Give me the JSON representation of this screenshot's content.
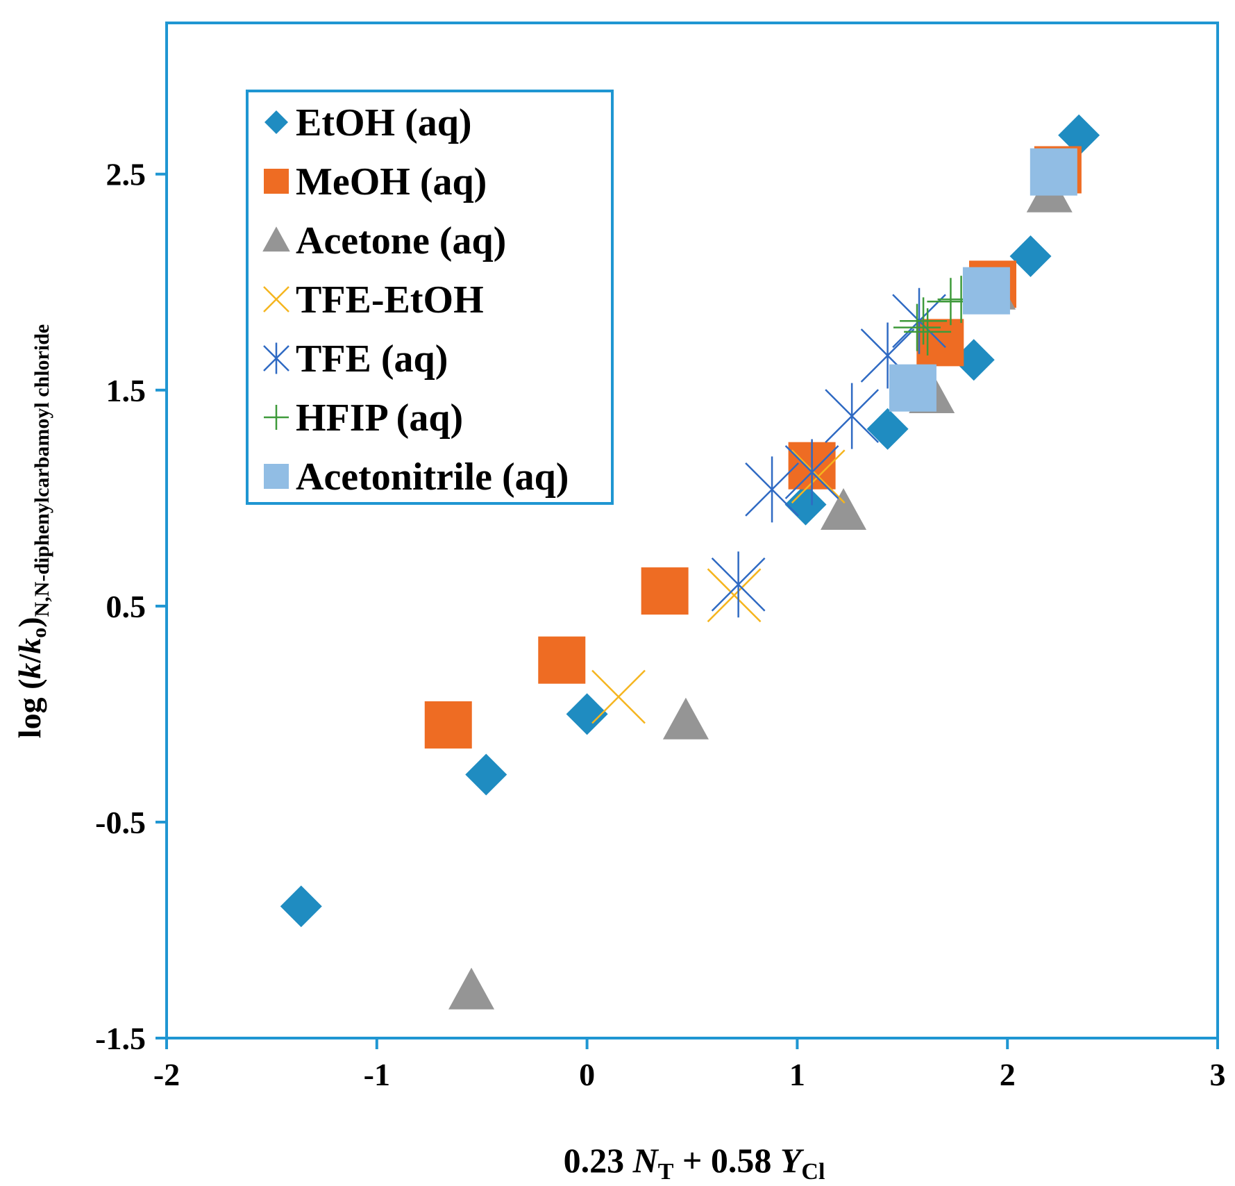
{
  "chart_data": {
    "type": "scatter",
    "title": "",
    "xlabel": {
      "main": "0.23 ",
      "n": "N",
      "nsub": "T",
      "plus": " + 0.58 ",
      "y": "Y",
      "ysub": "Cl"
    },
    "ylabel": {
      "prefix": "log (",
      "k": "k",
      "slash": "/",
      "k0": "k",
      "k0sub": "o",
      "close": ")",
      "subscript": "N,N-diphenylcarbamoyl chloride"
    },
    "xlim": [
      -2,
      3
    ],
    "ylim": [
      -1.5,
      3.2
    ],
    "xticks": [
      -2,
      -1,
      0,
      1,
      2,
      3
    ],
    "xtick_labels": [
      "-2",
      "-1",
      "0",
      "1",
      "2",
      "3"
    ],
    "yticks": [
      -1.5,
      -0.5,
      0.5,
      1.5,
      2.5
    ],
    "ytick_labels": [
      "-1.5",
      "-0.5",
      "0.5",
      "1.5",
      "2.5"
    ],
    "legend_position": "top-left",
    "series": [
      {
        "name": "EtOH (aq)",
        "marker": "diamond",
        "color": "#1f8cc1",
        "points": [
          [
            -1.36,
            -0.89
          ],
          [
            -0.48,
            -0.28
          ],
          [
            0.0,
            0.0
          ],
          [
            1.04,
            0.97
          ],
          [
            1.43,
            1.32
          ],
          [
            1.84,
            1.64
          ],
          [
            2.11,
            2.12
          ],
          [
            2.25,
            2.52
          ],
          [
            2.34,
            2.68
          ]
        ]
      },
      {
        "name": "MeOH (aq)",
        "marker": "square",
        "color": "#ee6c23",
        "points": [
          [
            -0.66,
            -0.05
          ],
          [
            -0.12,
            0.25
          ],
          [
            0.37,
            0.57
          ],
          [
            1.07,
            1.15
          ],
          [
            1.68,
            1.72
          ],
          [
            1.93,
            1.99
          ],
          [
            2.24,
            2.52
          ]
        ]
      },
      {
        "name": "Acetone (aq)",
        "marker": "triangle",
        "color": "#959595",
        "points": [
          [
            -0.55,
            -1.28
          ],
          [
            0.47,
            -0.03
          ],
          [
            1.22,
            0.94
          ],
          [
            1.64,
            1.48
          ],
          [
            1.93,
            1.96
          ],
          [
            2.2,
            2.41
          ]
        ]
      },
      {
        "name": "TFE-EtOH",
        "marker": "x",
        "color": "#f5b51f",
        "points": [
          [
            0.15,
            0.08
          ],
          [
            0.7,
            0.55
          ],
          [
            1.1,
            1.1
          ]
        ]
      },
      {
        "name": "TFE (aq)",
        "marker": "asterisk",
        "color": "#2f6ac3",
        "points": [
          [
            0.88,
            1.04
          ],
          [
            0.72,
            0.6
          ],
          [
            1.07,
            1.12
          ],
          [
            1.26,
            1.38
          ],
          [
            1.43,
            1.66
          ],
          [
            1.58,
            1.82
          ]
        ]
      },
      {
        "name": "HFIP (aq)",
        "marker": "plus",
        "color": "#3e9a3a",
        "points": [
          [
            1.57,
            1.79
          ],
          [
            1.6,
            1.82
          ],
          [
            1.62,
            1.77
          ],
          [
            1.73,
            1.91
          ],
          [
            1.78,
            1.92
          ]
        ]
      },
      {
        "name": "Acetonitrile (aq)",
        "marker": "square",
        "color": "#91bde4",
        "points": [
          [
            1.55,
            1.51
          ],
          [
            1.9,
            1.96
          ],
          [
            2.22,
            2.51
          ]
        ]
      }
    ]
  },
  "colors": {
    "frame": "#1f96d2",
    "axis": "#1f96d2"
  }
}
